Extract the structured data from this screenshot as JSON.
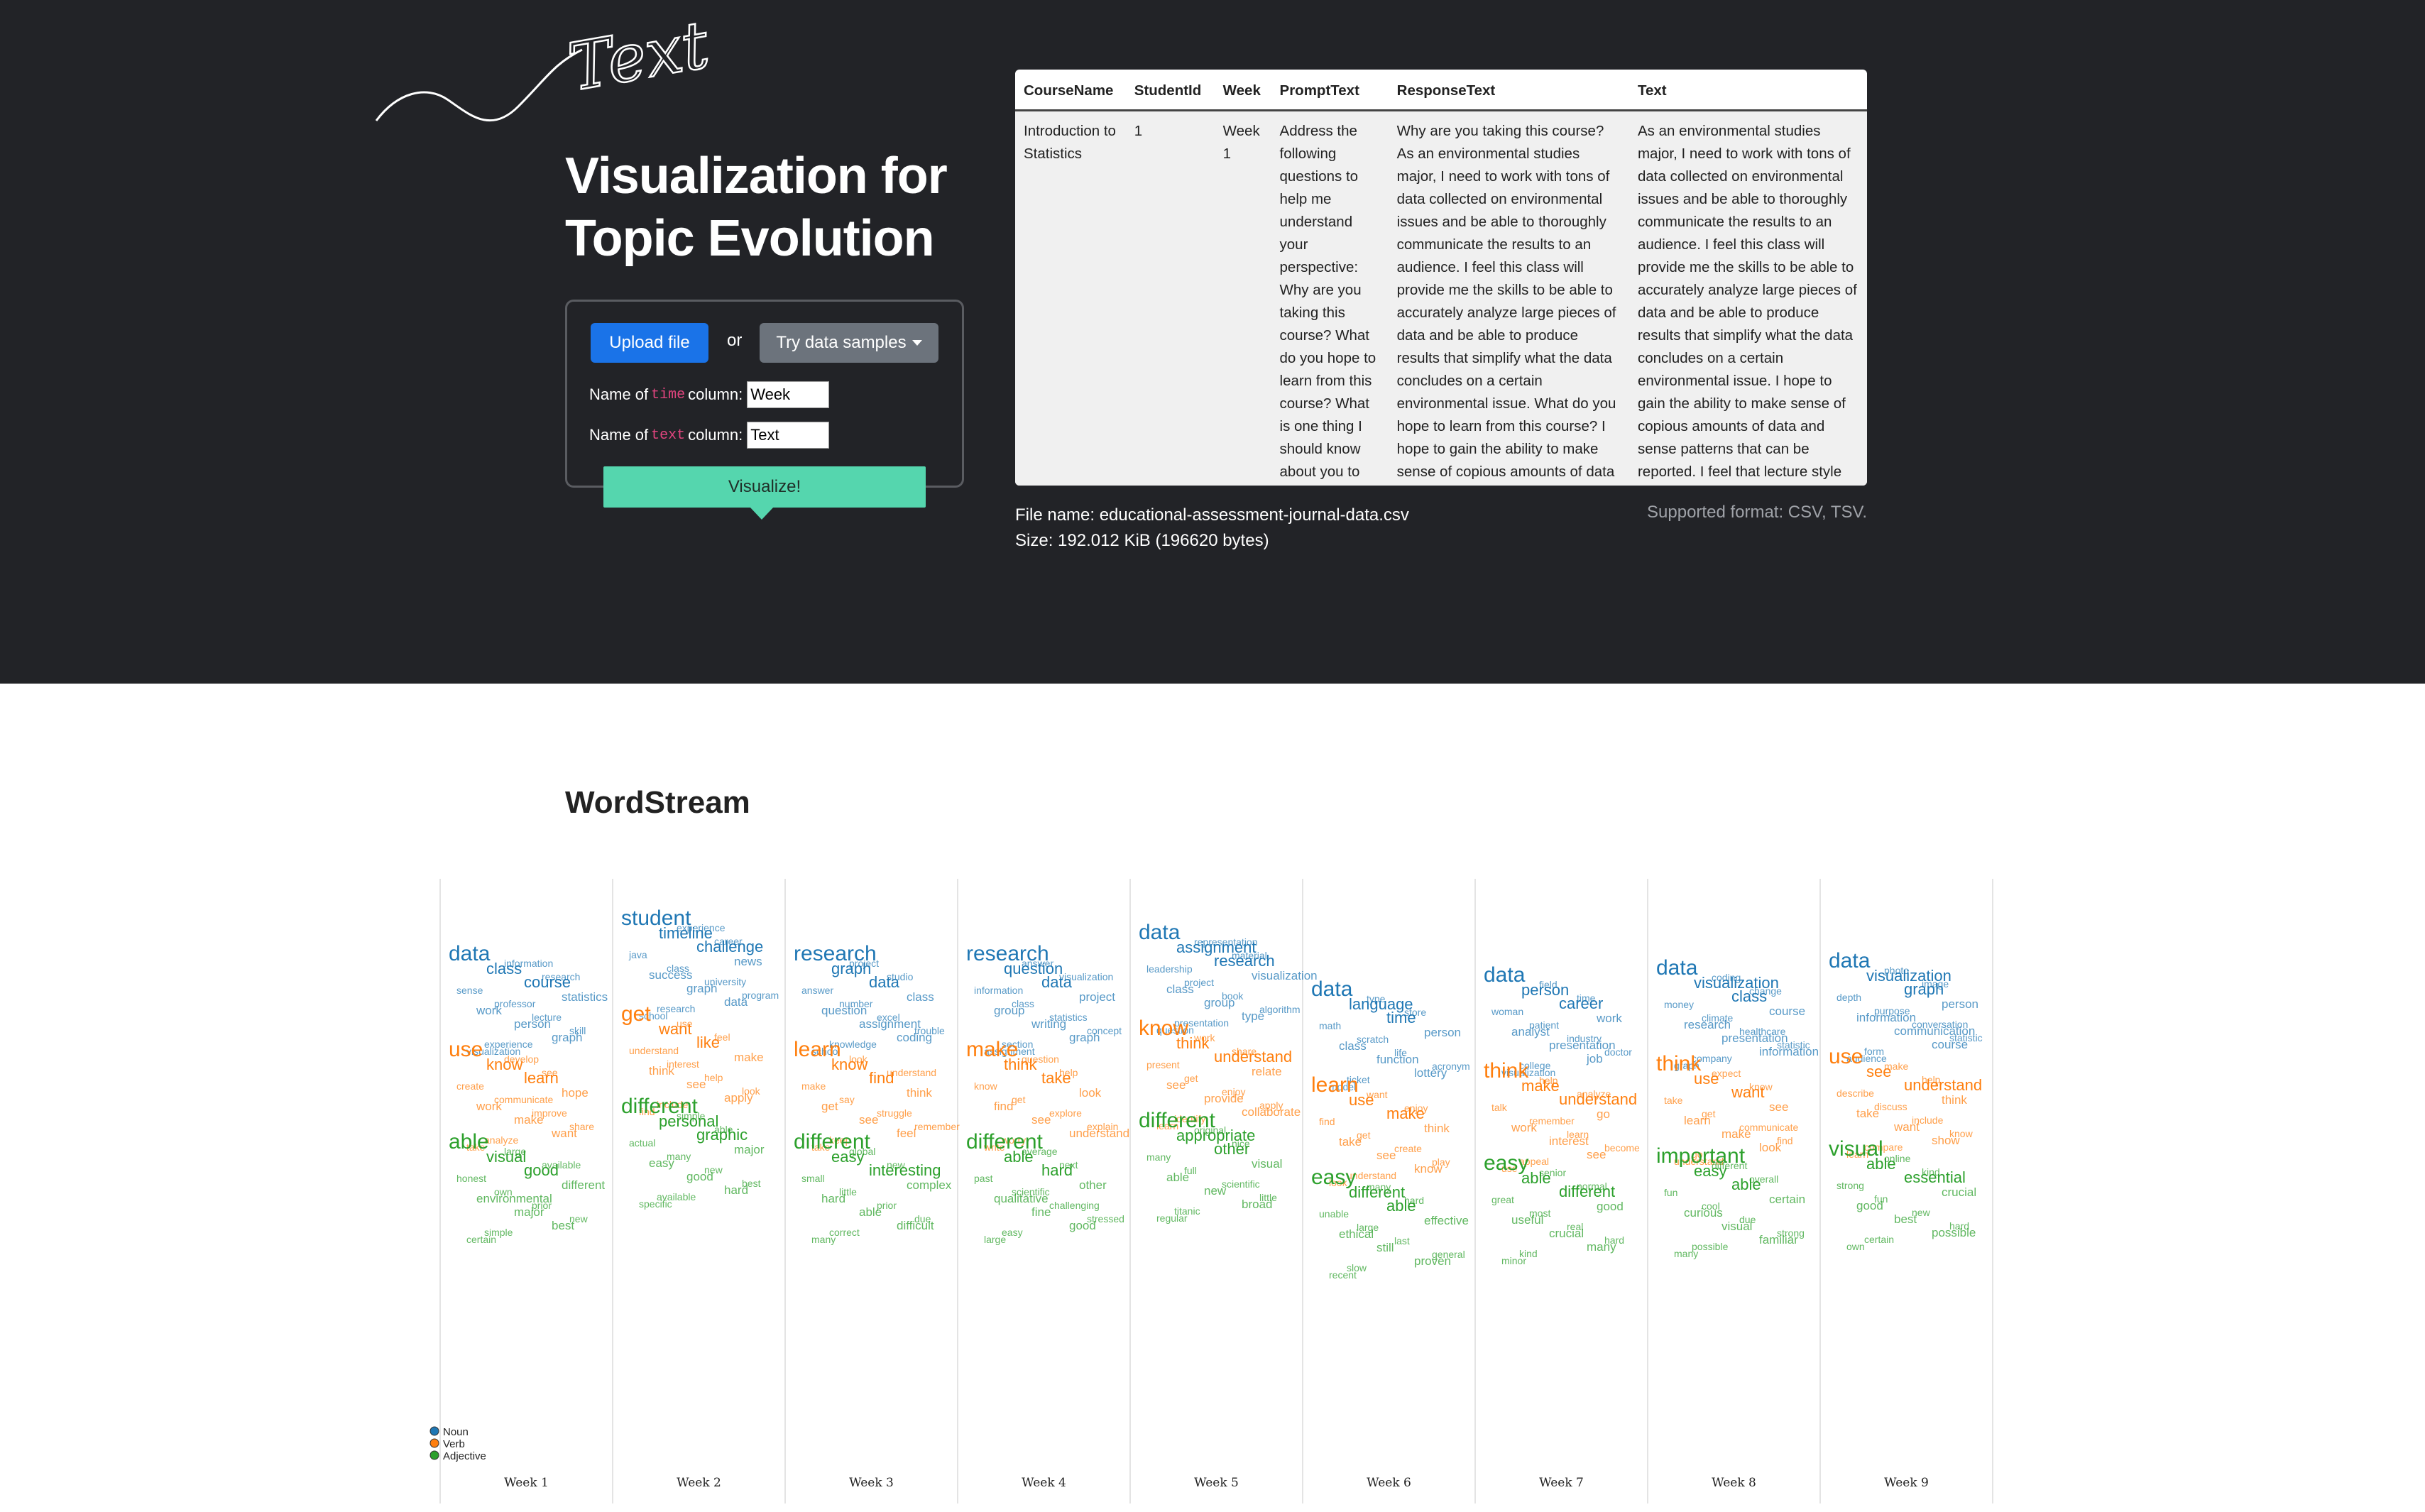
{
  "hero": {
    "logo_text": "Text",
    "title_line1": "Visualization for",
    "title_line2": "Topic Evolution",
    "upload_label": "Upload file",
    "or_label": "or",
    "samples_label": "Try data samples",
    "time_field": {
      "prefix": "Name of ",
      "keyword": "time",
      "suffix": " column:",
      "value": "Week"
    },
    "text_field": {
      "prefix": "Name of ",
      "keyword": "text",
      "suffix": " column:",
      "value": "Text"
    },
    "visualize_label": "Visualize!",
    "file_name": "File name: educational-assessment-journal-data.csv",
    "file_size": "Size: 192.012 KiB (196620 bytes)",
    "supported": "Supported format: CSV, TSV."
  },
  "table": {
    "headers": [
      "CourseName",
      "StudentId",
      "Week",
      "PromptText",
      "ResponseText",
      "Text"
    ],
    "rows": [
      [
        "Introduction to Statistics",
        "1",
        "Week 1",
        "Address the following questions to help me understand your perspective: Why are you taking this course? What do you hope to learn from this course? What is one thing I should know about you to help you learn?",
        "Why are you taking this course? As an environmental studies major, I need to work with tons of data collected on environmental issues and be able to thoroughly communicate the results to an audience. I feel this class will provide me the skills to be able to accurately analyze large pieces of data and be able to produce results that simplify what the data concludes on a certain environmental issue. What do you hope to learn from this course? I hope to gain the ability to make sense of copious amounts of data and sense patterns that can be reported. What is one thing I should know about you to help you learn? I feel that lecture style teachings tied with a portion of class time designated to",
        "As an environmental studies major, I need to work with tons of data collected on environmental issues and be able to thoroughly communicate the results to an audience. I feel this class will provide me the skills to be able to accurately analyze large pieces of data and be able to produce results that simplify what the data concludes on a certain environmental issue. I hope to gain the ability to make sense of copious amounts of data and sense patterns that can be reported. I feel that lecture style teachings tied with a portion of class time designated to hands-on work is my best way of learning. Sitting through a lecture for a long time to work through"
      ]
    ]
  },
  "wordstream": {
    "title": "WordStream",
    "legend": [
      {
        "label": "Noun",
        "color": "#1f77b4"
      },
      {
        "label": "Verb",
        "color": "#ff7f0e"
      },
      {
        "label": "Adjective",
        "color": "#2ca02c"
      }
    ],
    "columns": [
      "Week 1",
      "Week 2",
      "Week 3",
      "Week 4",
      "Week 5",
      "Week 6",
      "Week 7",
      "Week 8",
      "Week 9"
    ],
    "words": {
      "noun": [
        [
          "data",
          "class",
          "course",
          "statistics",
          "work",
          "person",
          "graph",
          "visualization",
          "information",
          "research",
          "sense",
          "professor",
          "lecture",
          "skill",
          "experience"
        ],
        [
          "student",
          "timeline",
          "challenge",
          "news",
          "success",
          "graph",
          "data",
          "school",
          "experience",
          "career",
          "java",
          "class",
          "university",
          "program",
          "research"
        ],
        [
          "research",
          "graph",
          "data",
          "class",
          "question",
          "assignment",
          "coding",
          "school",
          "project",
          "studio",
          "answer",
          "number",
          "excel",
          "trouble",
          "knowledge"
        ],
        [
          "research",
          "question",
          "data",
          "project",
          "group",
          "writing",
          "graph",
          "assignment",
          "answer",
          "visualization",
          "information",
          "class",
          "statistics",
          "concept",
          "section"
        ],
        [
          "data",
          "assignment",
          "research",
          "visualization",
          "class",
          "group",
          "type",
          "question",
          "representation",
          "material",
          "leadership",
          "project",
          "book",
          "algorithm",
          "presentation"
        ],
        [
          "data",
          "language",
          "time",
          "person",
          "class",
          "function",
          "lottery",
          "model",
          "type",
          "store",
          "math",
          "scratch",
          "life",
          "acronym",
          "ticket"
        ],
        [
          "data",
          "person",
          "career",
          "work",
          "analyst",
          "presentation",
          "job",
          "visualization",
          "field",
          "time",
          "woman",
          "patient",
          "industry",
          "doctor",
          "college"
        ],
        [
          "data",
          "visualization",
          "class",
          "course",
          "research",
          "presentation",
          "information",
          "graph",
          "coding",
          "change",
          "money",
          "climate",
          "healthcare",
          "statistic",
          "company"
        ],
        [
          "data",
          "visualization",
          "graph",
          "person",
          "information",
          "communication",
          "course",
          "audience",
          "photo",
          "image",
          "depth",
          "purpose",
          "conversation",
          "statistic",
          "form"
        ]
      ],
      "verb": [
        [
          "use",
          "know",
          "learn",
          "hope",
          "work",
          "make",
          "want",
          "take",
          "develop",
          "see",
          "create",
          "communicate",
          "improve",
          "share",
          "analyze"
        ],
        [
          "get",
          "want",
          "like",
          "make",
          "think",
          "see",
          "apply",
          "find",
          "use",
          "feel",
          "understand",
          "interest",
          "help",
          "look",
          "include"
        ],
        [
          "learn",
          "know",
          "find",
          "think",
          "get",
          "see",
          "feel",
          "take",
          "look",
          "understand",
          "make",
          "say",
          "struggle",
          "remember",
          "keep"
        ],
        [
          "make",
          "think",
          "take",
          "look",
          "find",
          "see",
          "understand",
          "write",
          "question",
          "help",
          "know",
          "get",
          "explore",
          "explain",
          "worry"
        ],
        [
          "know",
          "think",
          "understand",
          "relate",
          "see",
          "provide",
          "collaborate",
          "learn",
          "work",
          "share",
          "present",
          "get",
          "enjoy",
          "apply",
          "identify"
        ],
        [
          "learn",
          "use",
          "make",
          "think",
          "take",
          "see",
          "know",
          "look",
          "want",
          "enjoy",
          "find",
          "get",
          "create",
          "play",
          "understand"
        ],
        [
          "think",
          "make",
          "understand",
          "go",
          "work",
          "interest",
          "see",
          "use",
          "help",
          "analyze",
          "talk",
          "remember",
          "learn",
          "become",
          "appeal"
        ],
        [
          "think",
          "use",
          "want",
          "see",
          "learn",
          "make",
          "look",
          "understand",
          "expect",
          "know",
          "take",
          "get",
          "communicate",
          "find",
          "go"
        ],
        [
          "use",
          "see",
          "understand",
          "think",
          "take",
          "want",
          "show",
          "learn",
          "make",
          "help",
          "describe",
          "discuss",
          "include",
          "know",
          "compare"
        ]
      ],
      "adj": [
        [
          "able",
          "visual",
          "good",
          "different",
          "environmental",
          "major",
          "best",
          "certain",
          "large",
          "available",
          "honest",
          "own",
          "prior",
          "new",
          "simple"
        ],
        [
          "different",
          "personal",
          "graphic",
          "major",
          "easy",
          "good",
          "hard",
          "specific",
          "simple",
          "able",
          "actual",
          "many",
          "new",
          "best",
          "available"
        ],
        [
          "different",
          "easy",
          "interesting",
          "complex",
          "hard",
          "able",
          "difficult",
          "many",
          "global",
          "new",
          "small",
          "little",
          "prior",
          "due",
          "correct"
        ],
        [
          "different",
          "able",
          "hard",
          "other",
          "qualitative",
          "fine",
          "good",
          "large",
          "average",
          "next",
          "past",
          "scientific",
          "challenging",
          "stressed",
          "easy"
        ],
        [
          "different",
          "appropriate",
          "other",
          "visual",
          "able",
          "new",
          "broad",
          "regular",
          "original",
          "nice",
          "many",
          "full",
          "scientific",
          "little",
          "titanic"
        ],
        [
          "easy",
          "different",
          "able",
          "effective",
          "ethical",
          "still",
          "proven",
          "recent",
          "many",
          "hard",
          "unable",
          "large",
          "last",
          "general",
          "slow"
        ],
        [
          "easy",
          "able",
          "different",
          "good",
          "useful",
          "crucial",
          "many",
          "minor",
          "senior",
          "normal",
          "great",
          "most",
          "real",
          "hard",
          "kind"
        ],
        [
          "important",
          "easy",
          "able",
          "certain",
          "curious",
          "visual",
          "familiar",
          "many",
          "different",
          "overall",
          "fun",
          "cool",
          "due",
          "strong",
          "possible"
        ],
        [
          "visual",
          "able",
          "essential",
          "crucial",
          "good",
          "best",
          "possible",
          "own",
          "online",
          "kind",
          "strong",
          "fun",
          "new",
          "hard",
          "certain"
        ]
      ]
    }
  }
}
